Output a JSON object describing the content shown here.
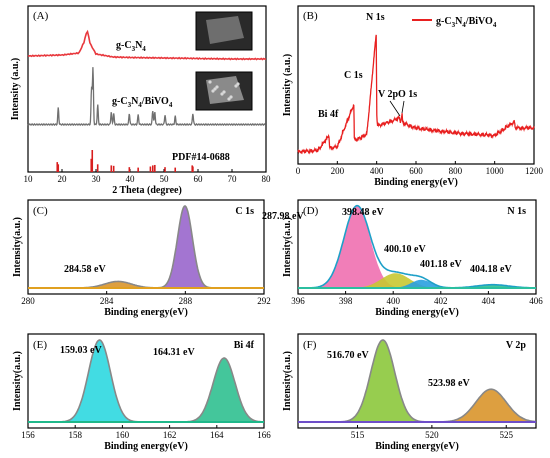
{
  "figure": {
    "panel_labels": [
      "(A)",
      "(B)",
      "(C)",
      "(D)",
      "(E)",
      "(F)"
    ]
  },
  "chart_data": [
    {
      "id": "A",
      "type": "line",
      "xlabel": "2 Theta (degree)",
      "ylabel": "Intensity (a.u.)",
      "xlim": [
        10,
        80
      ],
      "xticks": [
        10,
        20,
        30,
        40,
        50,
        60,
        70,
        80
      ],
      "series": [
        {
          "name": "g-C3N4",
          "label_main": "g-C",
          "label_sub1": "3",
          "label_mid": "N",
          "label_sub2": "4",
          "label_tail": "",
          "color": "#e8383d",
          "x": [
            10,
            20,
            25,
            26.5,
            27.4,
            28.3,
            30,
            35,
            40,
            50,
            60,
            70,
            80
          ],
          "y": [
            0.6,
            0.7,
            0.9,
            2.0,
            3.2,
            1.8,
            0.8,
            0.5,
            0.45,
            0.4,
            0.35,
            0.3,
            0.3
          ]
        },
        {
          "name": "g-C3N4/BiVO4",
          "label_main": "g-C",
          "label_sub1": "3",
          "label_mid": "N",
          "label_sub2": "4",
          "label_tail": "/BiVO",
          "label_sub3": "4",
          "color": "#707070",
          "peaks_x": [
            18.9,
            28.7,
            29.1,
            30.5,
            34.5,
            35.2,
            39.8,
            42.4,
            46.7,
            47.3,
            50.3,
            53.3,
            58.5
          ],
          "peaks_y": [
            1.2,
            2.6,
            4.0,
            1.4,
            0.9,
            0.8,
            0.8,
            0.7,
            1.0,
            0.9,
            0.7,
            0.6,
            0.8
          ]
        },
        {
          "name": "PDF#14-0688",
          "color": "#d81e1e",
          "x": [
            18.6,
            18.9,
            28.6,
            28.9,
            30.5,
            34.5,
            35.2,
            39.8,
            42.4,
            46.0,
            46.7,
            47.3,
            50.3,
            53.3,
            58.3,
            58.5
          ],
          "y": [
            0.45,
            0.35,
            0.6,
            1.0,
            0.35,
            0.3,
            0.28,
            0.22,
            0.2,
            0.25,
            0.3,
            0.32,
            0.22,
            0.2,
            0.3,
            0.25
          ]
        }
      ]
    },
    {
      "id": "B",
      "type": "line",
      "xlabel": "Binding energy(eV)",
      "ylabel": "Intensity (a.u.)",
      "xlim": [
        0,
        1200
      ],
      "xticks": [
        0,
        200,
        400,
        600,
        800,
        1000,
        1200
      ],
      "legend": "top-right",
      "series": [
        {
          "name": "g-C3N4/BiVO4",
          "label_main": "g-C",
          "label_sub1": "3",
          "label_mid": "N",
          "label_sub2": "4",
          "label_tail": "/BiVO",
          "label_sub3": "4",
          "color": "#e82020",
          "x": [
            0,
            100,
            158,
            160,
            165,
            200,
            284,
            286,
            290,
            350,
            398,
            400,
            404,
            450,
            516,
            520,
            530,
            532,
            600,
            800,
            1000,
            1100,
            1105,
            1200
          ],
          "y": [
            0.5,
            0.6,
            1.8,
            0.9,
            0.8,
            0.9,
            4.3,
            1.6,
            1.4,
            1.9,
            10.0,
            3.6,
            2.6,
            2.8,
            3.2,
            2.9,
            3.5,
            2.8,
            2.4,
            2.0,
            1.8,
            2.9,
            2.4,
            2.4
          ]
        }
      ],
      "annotations": [
        {
          "text": "N 1s",
          "x": 400
        },
        {
          "text": "C 1s",
          "x": 285
        },
        {
          "text": "Bi 4f",
          "x": 160
        },
        {
          "text": "V 2p",
          "x": 516
        },
        {
          "text": "O 1s",
          "x": 531
        }
      ]
    },
    {
      "id": "C",
      "type": "area",
      "title": "C 1s",
      "xlabel": "Binding energy(eV)",
      "ylabel": "Intensity(a.u.)",
      "xlim": [
        280,
        292
      ],
      "xticks": [
        280,
        284,
        288,
        292
      ],
      "peaks": [
        {
          "label": "287.98 eV",
          "center": 287.98,
          "height": 1.0,
          "fwhm": 0.9,
          "color": "#9966cc"
        },
        {
          "label": "284.58 eV",
          "center": 284.58,
          "height": 0.08,
          "fwhm": 1.6,
          "color": "#d9952b"
        }
      ]
    },
    {
      "id": "D",
      "type": "area",
      "title": "N 1s",
      "xlabel": "Binding energy(eV)",
      "ylabel": "Intensity(a.u.)",
      "xlim": [
        396,
        406
      ],
      "xticks": [
        396,
        398,
        400,
        402,
        404,
        406
      ],
      "peaks": [
        {
          "label": "398.48 eV",
          "center": 398.48,
          "height": 1.0,
          "fwhm": 1.3,
          "color": "#f070b0"
        },
        {
          "label": "400.10 eV",
          "center": 400.1,
          "height": 0.18,
          "fwhm": 1.4,
          "color": "#c8c832"
        },
        {
          "label": "401.18 eV",
          "center": 401.18,
          "height": 0.1,
          "fwhm": 1.0,
          "color": "#2aa0e0"
        },
        {
          "label": "404.18 eV",
          "center": 404.18,
          "height": 0.04,
          "fwhm": 1.6,
          "color": "#30c090"
        }
      ]
    },
    {
      "id": "E",
      "type": "area",
      "title": "Bi 4f",
      "xlabel": "Binding energy(eV)",
      "ylabel": "Intensity(a.u.)",
      "xlim": [
        156,
        166
      ],
      "xticks": [
        156,
        158,
        160,
        162,
        164,
        166
      ],
      "peaks": [
        {
          "label": "159.03 eV",
          "center": 159.03,
          "height": 1.0,
          "fwhm": 1.1,
          "color": "#2ed8e0"
        },
        {
          "label": "164.31 eV",
          "center": 164.31,
          "height": 0.78,
          "fwhm": 1.1,
          "color": "#30c090"
        }
      ]
    },
    {
      "id": "F",
      "type": "area",
      "title": "V 2p",
      "xlabel": "Binding energy(eV)",
      "ylabel": "Intensity(a.u.)",
      "xlim": [
        511,
        527
      ],
      "xticks": [
        515,
        520,
        525
      ],
      "peaks": [
        {
          "label": "516.70 eV",
          "center": 516.7,
          "height": 1.0,
          "fwhm": 1.9,
          "color": "#8cc83c"
        },
        {
          "label": "523.98 eV",
          "center": 523.98,
          "height": 0.4,
          "fwhm": 2.4,
          "color": "#d9952b"
        }
      ]
    }
  ]
}
